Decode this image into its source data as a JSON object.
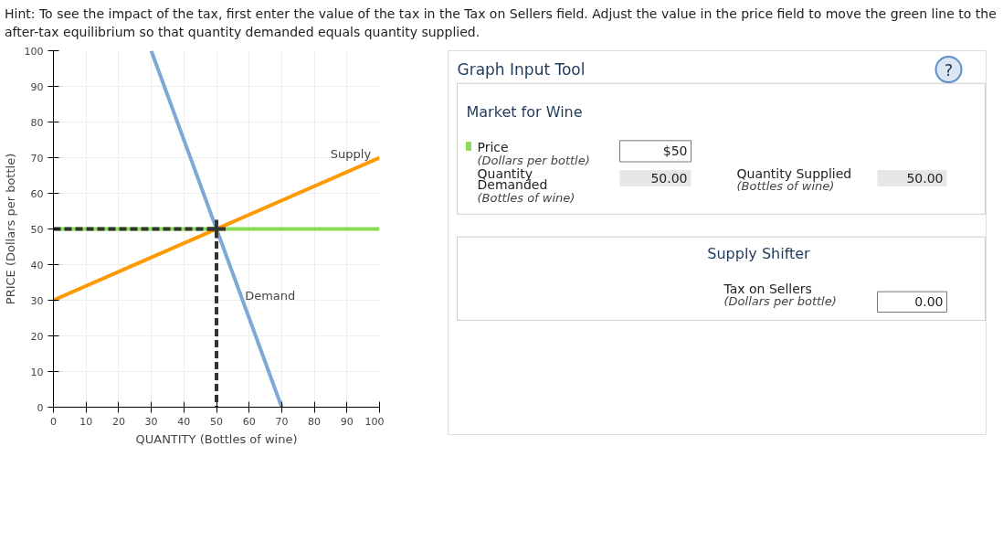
{
  "chart_data": {
    "type": "line",
    "title": "Hint: To see the impact of the tax, first enter the value of the tax in the Tax on Sellers field. Adjust the value in the price field to move the green line to the after-tax equilibrium so that quantity demanded equals quantity supplied.",
    "xlabel": "QUANTITY (Bottles of wine)",
    "ylabel": "PRICE (Dollars per bottle)",
    "xlim": [
      0,
      100
    ],
    "ylim": [
      0,
      100
    ],
    "xticks": [
      0,
      10,
      20,
      30,
      40,
      50,
      60,
      70,
      80,
      90,
      100
    ],
    "yticks": [
      0,
      10,
      20,
      30,
      40,
      50,
      60,
      70,
      80,
      90,
      100
    ],
    "grid": true,
    "legend": "right",
    "marker": "none",
    "series": [
      {
        "name": "Price",
        "color": "#88dd55",
        "x": [
          0,
          100
        ],
        "values": [
          50,
          50
        ]
      },
      {
        "name": "Supply",
        "color": "#ff9900",
        "x": [
          0,
          100
        ],
        "values": [
          30,
          70
        ]
      },
      {
        "name": "Demand",
        "color": "#7fa9d4",
        "x": [
          30,
          70
        ],
        "values": [
          100,
          0
        ]
      },
      {
        "color": "#333333",
        "x": [
          0,
          50,
          50
        ],
        "values": [
          50,
          50,
          0
        ],
        "line_style": "dashed"
      },
      {
        "type": "scatter",
        "color": "#333333",
        "marker": "cross",
        "x": [
          50
        ],
        "values": [
          50
        ]
      }
    ],
    "annotations": [
      "Graph Input Tool",
      "?",
      "Market for Wine",
      "(Dollars per bottle)",
      "$50",
      "Quantity",
      "Demanded",
      "(Bottles of wine)",
      "50.00",
      "Quantity Supplied",
      "(Bottles of wine)",
      "50.00",
      "Supply Shifter",
      "Tax on Sellers",
      "(Dollars per bottle)",
      "0.00"
    ]
  }
}
